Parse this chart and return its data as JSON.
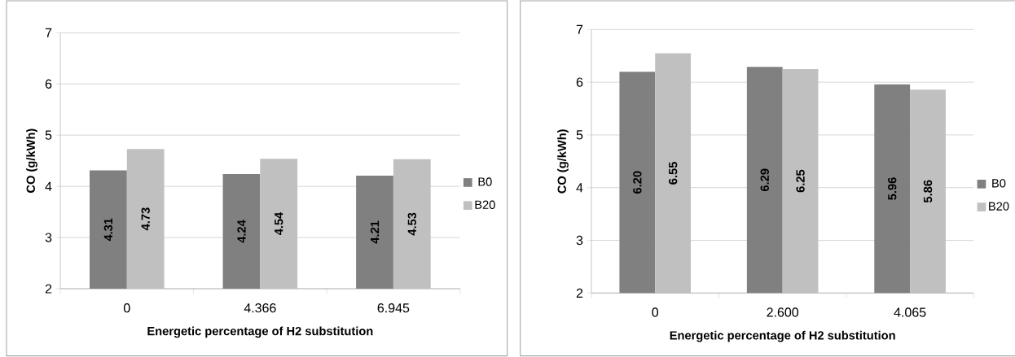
{
  "chart_data": [
    {
      "type": "bar",
      "categories": [
        "0",
        "4.366",
        "6.945"
      ],
      "series": [
        {
          "name": "B0",
          "color": "#808080",
          "values": [
            4.31,
            4.24,
            4.21
          ],
          "value_labels": [
            "4.31",
            "4.24",
            "4.21"
          ]
        },
        {
          "name": "B20",
          "color": "#c0c0c0",
          "values": [
            4.73,
            4.54,
            4.53
          ],
          "value_labels": [
            "4.73",
            "4.54",
            "4.53"
          ]
        }
      ],
      "xlabel": "Energetic percentage of H2 substitution",
      "ylabel": "CO (g/kWh)",
      "ylim": [
        2,
        7
      ],
      "yticks": [
        2,
        3,
        4,
        5,
        6,
        7
      ],
      "grid": "y",
      "legend": "right"
    },
    {
      "type": "bar",
      "categories": [
        "0",
        "2.600",
        "4.065"
      ],
      "series": [
        {
          "name": "B0",
          "color": "#808080",
          "values": [
            6.2,
            6.29,
            5.96
          ],
          "value_labels": [
            "6.20",
            "6.29",
            "5.96"
          ]
        },
        {
          "name": "B20",
          "color": "#c0c0c0",
          "values": [
            6.55,
            6.25,
            5.86
          ],
          "value_labels": [
            "6.55",
            "6.25",
            "5.86"
          ]
        }
      ],
      "xlabel": "Energetic percentage of H2 substitution",
      "ylabel": "CO (g/kWh)",
      "ylim": [
        2,
        7
      ],
      "yticks": [
        2,
        3,
        4,
        5,
        6,
        7
      ],
      "grid": "y",
      "legend": "right"
    }
  ]
}
